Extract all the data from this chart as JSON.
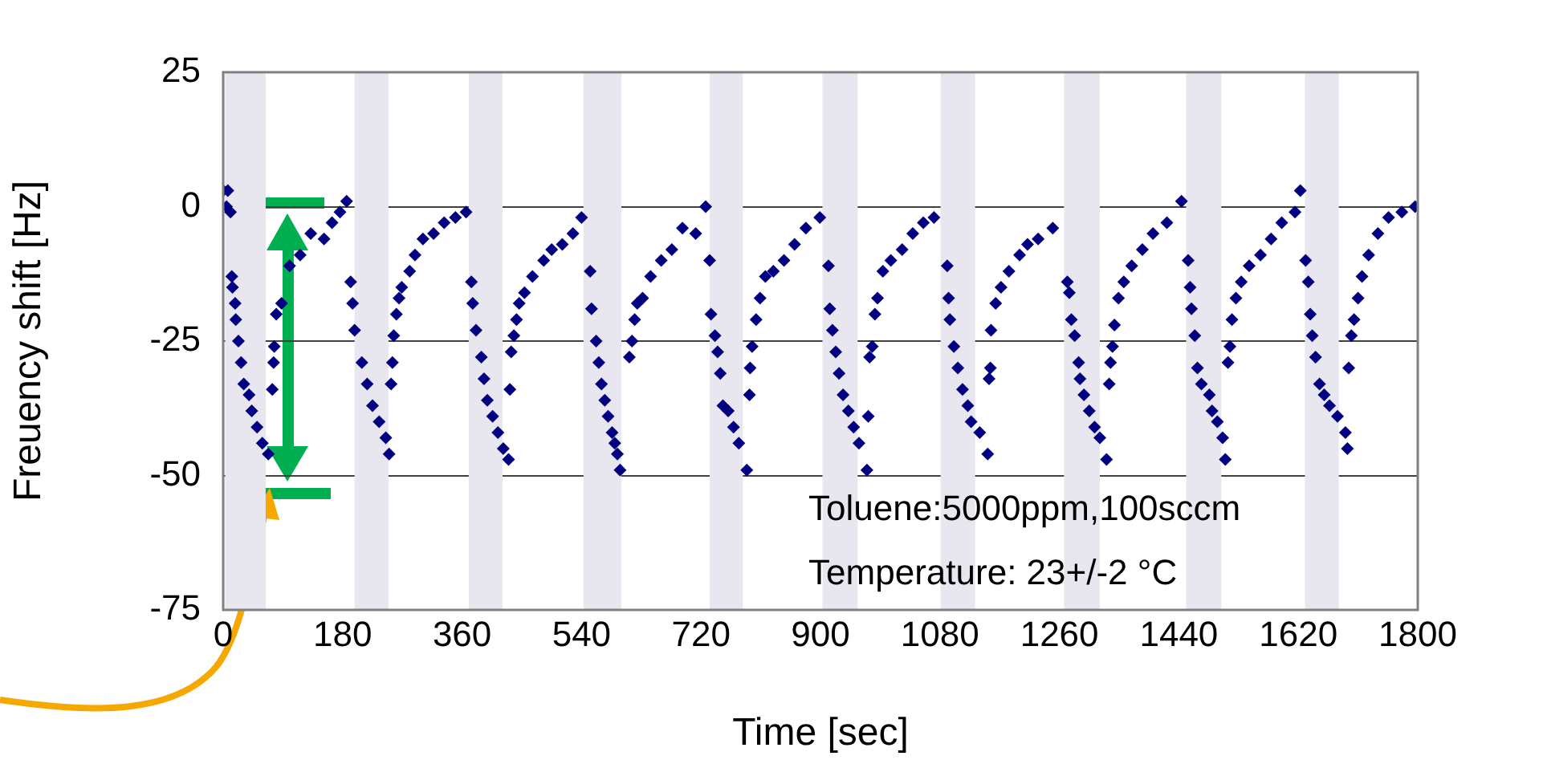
{
  "chart_data": {
    "type": "scatter",
    "xlabel": "Time [sec]",
    "ylabel": "Freuency shift [Hz]",
    "xlim": [
      0,
      1800
    ],
    "xticks": [
      0,
      180,
      360,
      540,
      720,
      900,
      1080,
      1260,
      1440,
      1620,
      1800
    ],
    "ylim": [
      -75,
      25
    ],
    "yticks": [
      -75,
      -50,
      -25,
      0,
      25
    ],
    "grid": "y",
    "legend": false,
    "marker": "diamond",
    "annotations": [
      "Toluene:5000ppm,100sccm",
      "Temperature: 23+/-2 °C"
    ],
    "bands": [
      {
        "axis": "x",
        "from": 3,
        "to": 64,
        "color": "#e8e6ee"
      },
      {
        "axis": "x",
        "from": 198,
        "to": 249,
        "color": "#e8e6ee"
      },
      {
        "axis": "x",
        "from": 370,
        "to": 421,
        "color": "#e8e6ee"
      },
      {
        "axis": "x",
        "from": 543,
        "to": 600,
        "color": "#e8e6ee"
      },
      {
        "axis": "x",
        "from": 733,
        "to": 783,
        "color": "#e8e6ee"
      },
      {
        "axis": "x",
        "from": 903,
        "to": 956,
        "color": "#e8e6ee"
      },
      {
        "axis": "x",
        "from": 1081,
        "to": 1133,
        "color": "#e8e6ee"
      },
      {
        "axis": "x",
        "from": 1267,
        "to": 1321,
        "color": "#e8e6ee"
      },
      {
        "axis": "x",
        "from": 1451,
        "to": 1504,
        "color": "#e8e6ee"
      },
      {
        "axis": "x",
        "from": 1630,
        "to": 1681,
        "color": "#e8e6ee"
      }
    ],
    "series": [
      {
        "color": "#000080",
        "x": [
          0,
          5,
          7,
          11,
          13,
          14,
          18,
          19,
          23,
          27,
          31,
          39,
          43,
          51,
          59,
          68,
          74,
          76,
          77,
          80,
          88,
          100,
          116,
          132,
          152,
          164,
          176,
          186,
          192,
          195,
          198,
          209,
          217,
          225,
          235,
          245,
          250,
          253,
          255,
          257,
          261,
          265,
          269,
          281,
          289,
          301,
          317,
          333,
          350,
          366,
          374,
          376,
          381,
          389,
          393,
          398,
          406,
          414,
          422,
          430,
          432,
          434,
          438,
          442,
          446,
          454,
          466,
          483,
          495,
          511,
          527,
          540,
          553,
          555,
          562,
          566,
          570,
          575,
          580,
          586,
          590,
          594,
          598,
          612,
          616,
          620,
          624,
          632,
          644,
          660,
          676,
          692,
          712,
          727,
          733,
          735,
          741,
          745,
          749,
          753,
          761,
          769,
          777,
          789,
          793,
          794,
          797,
          803,
          809,
          817,
          829,
          845,
          861,
          878,
          899,
          912,
          914,
          918,
          923,
          928,
          934,
          942,
          950,
          958,
          970,
          972,
          974,
          978,
          982,
          986,
          994,
          1006,
          1023,
          1039,
          1055,
          1071,
          1091,
          1093,
          1095,
          1101,
          1107,
          1114,
          1122,
          1127,
          1140,
          1152,
          1154,
          1156,
          1157,
          1164,
          1172,
          1184,
          1200,
          1212,
          1228,
          1250,
          1272,
          1275,
          1278,
          1283,
          1289,
          1291,
          1297,
          1305,
          1313,
          1321,
          1331,
          1335,
          1337,
          1340,
          1343,
          1349,
          1357,
          1369,
          1385,
          1401,
          1422,
          1444,
          1454,
          1457,
          1459,
          1464,
          1468,
          1474,
          1486,
          1490,
          1498,
          1506,
          1510,
          1514,
          1517,
          1520,
          1526,
          1534,
          1546,
          1563,
          1579,
          1595,
          1615,
          1623,
          1631,
          1635,
          1638,
          1641,
          1646,
          1652,
          1659,
          1667,
          1679,
          1691,
          1694,
          1696,
          1700,
          1704,
          1710,
          1716,
          1726,
          1740,
          1756,
          1776,
          1796
        ],
        "values": [
          3,
          0,
          3,
          -1,
          -13,
          -15,
          -18,
          -21,
          -25,
          -29,
          -33,
          -35,
          -38,
          -41,
          -44,
          -46,
          -34,
          -29,
          -26,
          -20,
          -18,
          -11,
          -9,
          -5,
          -6,
          -3,
          -1,
          1,
          -14,
          -18,
          -23,
          -29,
          -33,
          -37,
          -40,
          -43,
          -46,
          -33,
          -29,
          -24,
          -20,
          -17,
          -15,
          -12,
          -9,
          -6,
          -5,
          -3,
          -2,
          -1,
          -14,
          -18,
          -23,
          -28,
          -32,
          -36,
          -39,
          -42,
          -45,
          -47,
          -34,
          -27,
          -24,
          -21,
          -18,
          -16,
          -13,
          -10,
          -8,
          -7,
          -5,
          -2,
          -12,
          -19,
          -25,
          -29,
          -33,
          -36,
          -39,
          -42,
          -44,
          -46,
          -49,
          -28,
          -25,
          -21,
          -18,
          -17,
          -13,
          -10,
          -8,
          -4,
          -5,
          0,
          -10,
          -20,
          -24,
          -27,
          -31,
          -37,
          -38,
          -41,
          -44,
          -49,
          -35,
          -30,
          -26,
          -21,
          -17,
          -13,
          -12,
          -10,
          -7,
          -4,
          -2,
          -11,
          -19,
          -23,
          -27,
          -31,
          -35,
          -38,
          -41,
          -44,
          -49,
          -39,
          -28,
          -26,
          -20,
          -17,
          -12,
          -10,
          -8,
          -5,
          -3,
          -2,
          -11,
          -17,
          -21,
          -26,
          -30,
          -34,
          -37,
          -40,
          -42,
          -46,
          -32,
          -30,
          -23,
          -18,
          -15,
          -12,
          -9,
          -7,
          -6,
          -4,
          -14,
          -16,
          -21,
          -24,
          -29,
          -32,
          -35,
          -38,
          -41,
          -43,
          -47,
          -33,
          -29,
          -26,
          -22,
          -17,
          -14,
          -11,
          -8,
          -5,
          -3,
          1,
          -10,
          -15,
          -19,
          -24,
          -30,
          -33,
          -35,
          -38,
          -40,
          -43,
          -47,
          -29,
          -26,
          -21,
          -17,
          -14,
          -11,
          -9,
          -6,
          -3,
          -1,
          3,
          -10,
          -14,
          -20,
          -24,
          -28,
          -33,
          -35,
          -37,
          -39,
          -42,
          -45,
          -30,
          -24,
          -21,
          -17,
          -13,
          -9,
          -5,
          -2,
          -1,
          0
        ]
      }
    ]
  }
}
